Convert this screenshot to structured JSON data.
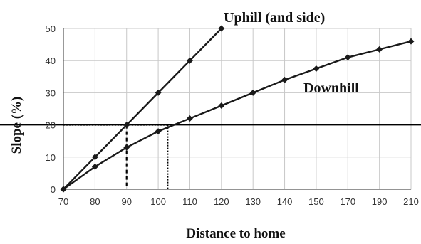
{
  "chart_data": {
    "type": "line",
    "title": "",
    "xlabel": "Distance to home",
    "ylabel": "Slope (%)",
    "x_ticks": [
      "70",
      "80",
      "90",
      "100",
      "110",
      "120",
      "130",
      "140",
      "150",
      "170",
      "190",
      "210"
    ],
    "y_ticks": [
      "0",
      "10",
      "20",
      "30",
      "40",
      "50"
    ],
    "ylim": [
      0,
      50
    ],
    "grid": true,
    "series": [
      {
        "name": "Uphill (and side)",
        "x": [
          70,
          80,
          90,
          100,
          110,
          120
        ],
        "y": [
          0,
          10,
          20,
          30,
          40,
          50
        ]
      },
      {
        "name": "Downhill",
        "x": [
          70,
          80,
          90,
          100,
          110,
          120,
          130,
          140,
          150,
          170,
          190,
          210
        ],
        "y": [
          0,
          7,
          13,
          18,
          22,
          26,
          30,
          34,
          37.5,
          41,
          43.5,
          46
        ]
      }
    ],
    "reference_line_y": 20,
    "reference_dropdowns_x": [
      90,
      103
    ]
  }
}
